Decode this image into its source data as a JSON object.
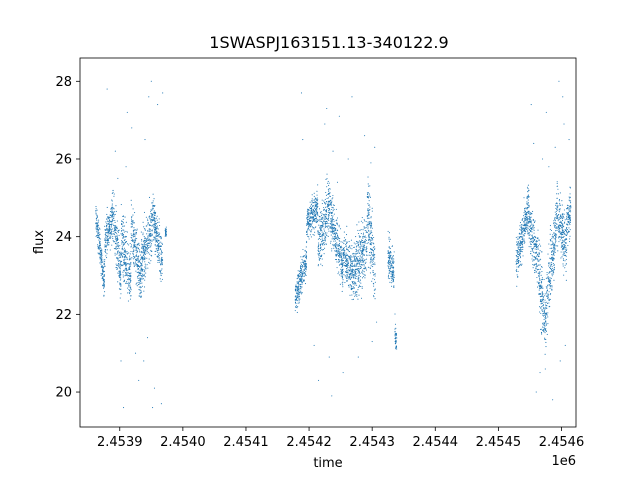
{
  "chart_data": {
    "type": "scatter",
    "title": "1SWASPJ163151.13-340122.9",
    "xlabel": "time",
    "ylabel": "flux",
    "x_offset_label": "1e6",
    "xlim": [
      2453837,
      2454623
    ],
    "ylim": [
      19.1,
      28.6
    ],
    "x_ticks": [
      2453900,
      2454000,
      2454100,
      2454200,
      2454300,
      2454400,
      2454500,
      2454600
    ],
    "x_tick_labels": [
      "2.4539",
      "2.4540",
      "2.4541",
      "2.4542",
      "2.4543",
      "2.4544",
      "2.4545",
      "2.4546"
    ],
    "y_ticks": [
      20,
      22,
      24,
      26,
      28
    ],
    "y_tick_labels": [
      "20",
      "22",
      "24",
      "26",
      "28"
    ],
    "grid": false,
    "marker_color": "#1f77b4",
    "series": [
      {
        "segments": [
          {
            "x_start": 2453862,
            "x_end": 2453876,
            "mid_start": 24.5,
            "mid_end": 22.8,
            "spread": 0.35
          },
          {
            "x_start": 2453876,
            "x_end": 2453888,
            "mid_start": 23.8,
            "mid_end": 24.5,
            "spread": 0.45
          },
          {
            "x_start": 2453888,
            "x_end": 2453902,
            "mid_start": 24.6,
            "mid_end": 23.0,
            "spread": 0.6
          },
          {
            "x_start": 2453902,
            "x_end": 2453918,
            "mid_start": 23.9,
            "mid_end": 23.0,
            "spread": 0.65
          },
          {
            "x_start": 2453918,
            "x_end": 2453934,
            "mid_start": 24.3,
            "mid_end": 22.9,
            "spread": 0.6
          },
          {
            "x_start": 2453934,
            "x_end": 2453952,
            "mid_start": 23.3,
            "mid_end": 24.3,
            "spread": 0.6
          },
          {
            "x_start": 2453952,
            "x_end": 2453968,
            "mid_start": 24.6,
            "mid_end": 23.3,
            "spread": 0.5
          },
          {
            "x_start": 2453972,
            "x_end": 2453974,
            "mid_start": 24.1,
            "mid_end": 24.1,
            "spread": 0.1
          },
          {
            "x_start": 2454178,
            "x_end": 2454196,
            "mid_start": 22.4,
            "mid_end": 23.4,
            "spread": 0.35
          },
          {
            "x_start": 2454196,
            "x_end": 2454214,
            "mid_start": 24.3,
            "mid_end": 24.8,
            "spread": 0.4
          },
          {
            "x_start": 2454214,
            "x_end": 2454234,
            "mid_start": 23.8,
            "mid_end": 24.9,
            "spread": 0.6
          },
          {
            "x_start": 2454234,
            "x_end": 2454254,
            "mid_start": 24.5,
            "mid_end": 23.2,
            "spread": 0.55
          },
          {
            "x_start": 2454254,
            "x_end": 2454270,
            "mid_start": 23.6,
            "mid_end": 23.0,
            "spread": 0.5
          },
          {
            "x_start": 2454270,
            "x_end": 2454292,
            "mid_start": 23.1,
            "mid_end": 23.8,
            "spread": 0.7
          },
          {
            "x_start": 2454292,
            "x_end": 2454305,
            "mid_start": 24.8,
            "mid_end": 23.0,
            "spread": 0.8
          },
          {
            "x_start": 2454325,
            "x_end": 2454335,
            "mid_start": 23.6,
            "mid_end": 23.0,
            "spread": 0.45
          },
          {
            "x_start": 2454336,
            "x_end": 2454339,
            "mid_start": 21.6,
            "mid_end": 21.2,
            "spread": 0.25
          },
          {
            "x_start": 2454528,
            "x_end": 2454545,
            "mid_start": 23.3,
            "mid_end": 24.5,
            "spread": 0.45
          },
          {
            "x_start": 2454545,
            "x_end": 2454562,
            "mid_start": 24.7,
            "mid_end": 23.4,
            "spread": 0.6
          },
          {
            "x_start": 2454562,
            "x_end": 2454576,
            "mid_start": 23.5,
            "mid_end": 21.5,
            "spread": 0.8
          },
          {
            "x_start": 2454576,
            "x_end": 2454592,
            "mid_start": 22.3,
            "mid_end": 24.3,
            "spread": 0.7
          },
          {
            "x_start": 2454592,
            "x_end": 2454608,
            "mid_start": 24.8,
            "mid_end": 23.6,
            "spread": 0.65
          },
          {
            "x_start": 2454608,
            "x_end": 2454615,
            "mid_start": 24.2,
            "mid_end": 24.7,
            "spread": 0.5
          }
        ],
        "outliers": [
          [
            2453893,
            26.2
          ],
          [
            2453897,
            25.5
          ],
          [
            2453880,
            27.8
          ],
          [
            2453902,
            20.8
          ],
          [
            2453906,
            19.6
          ],
          [
            2453912,
            27.2
          ],
          [
            2453919,
            26.8
          ],
          [
            2453925,
            21.0
          ],
          [
            2453930,
            20.3
          ],
          [
            2453940,
            26.5
          ],
          [
            2453946,
            27.6
          ],
          [
            2453950,
            28.0
          ],
          [
            2453952,
            19.6
          ],
          [
            2453955,
            20.1
          ],
          [
            2453960,
            27.4
          ],
          [
            2453966,
            19.7
          ],
          [
            2453968,
            27.7
          ],
          [
            2453938,
            20.8
          ],
          [
            2453944,
            21.4
          ],
          [
            2453910,
            25.8
          ],
          [
            2454188,
            27.7
          ],
          [
            2454190,
            26.5
          ],
          [
            2454208,
            21.2
          ],
          [
            2454215,
            20.3
          ],
          [
            2454225,
            26.9
          ],
          [
            2454228,
            27.3
          ],
          [
            2454232,
            20.9
          ],
          [
            2454236,
            19.9
          ],
          [
            2454238,
            26.2
          ],
          [
            2454248,
            27.1
          ],
          [
            2454254,
            20.5
          ],
          [
            2454262,
            26.0
          ],
          [
            2454268,
            27.6
          ],
          [
            2454278,
            20.9
          ],
          [
            2454288,
            26.6
          ],
          [
            2454298,
            25.9
          ],
          [
            2454300,
            21.3
          ],
          [
            2454304,
            26.3
          ],
          [
            2454307,
            21.8
          ],
          [
            2454245,
            25.4
          ],
          [
            2454552,
            27.4
          ],
          [
            2454556,
            26.4
          ],
          [
            2454560,
            20.0
          ],
          [
            2454566,
            20.5
          ],
          [
            2454576,
            27.2
          ],
          [
            2454580,
            25.8
          ],
          [
            2454586,
            19.8
          ],
          [
            2454590,
            26.3
          ],
          [
            2454596,
            28.0
          ],
          [
            2454598,
            20.8
          ],
          [
            2454602,
            27.6
          ],
          [
            2454604,
            26.9
          ],
          [
            2454606,
            21.2
          ],
          [
            2454612,
            26.5
          ],
          [
            2454570,
            26.0
          ]
        ]
      }
    ]
  }
}
